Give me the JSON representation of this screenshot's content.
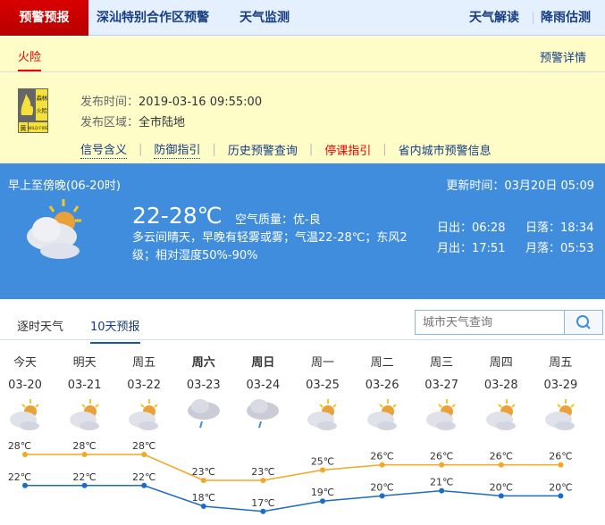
{
  "nav": {
    "active": "预警预报",
    "items": [
      "深汕特别合作区预警",
      "天气监测"
    ],
    "right": [
      "天气解读",
      "降雨估测"
    ]
  },
  "warning": {
    "tab": "火险",
    "details_link": "预警详情",
    "signal": {
      "top": "森林火险",
      "level": "黄",
      "en": "WILD FIRE"
    },
    "time_label": "发布时间：",
    "time": "2019-03-16 09:55:00",
    "area_label": "发布区域：",
    "area": "全市陆地",
    "links": [
      "信号含义",
      "防御指引",
      "历史预警查询",
      "停课指引",
      "省内城市预警信息"
    ]
  },
  "today": {
    "period": "早上至傍晚(06-20时)",
    "update": "更新时间：03月20日 05:09",
    "temp": "22-28℃",
    "aqi": "空气质量：优-良",
    "desc": "多云间晴天，早晚有轻雾或雾；气温22-28℃；东风2级；相对湿度50%-90%",
    "sunrise": "日出：06:28",
    "sunset": "日落：18:34",
    "moonrise": "月出：17:51",
    "moonset": "月落：05:53",
    "icon": "partly-cloudy-icon"
  },
  "tabs": [
    "逐时天气",
    "10天预报"
  ],
  "search": {
    "placeholder": "城市天气查询"
  },
  "colors": {
    "high": "#f5a623",
    "low": "#1a6cc8",
    "accent": "#3f8ddc"
  },
  "chart_data": {
    "type": "line",
    "categories": [
      "今天",
      "明天",
      "周五",
      "周六",
      "周日",
      "周一",
      "周二",
      "周三",
      "周四",
      "周五"
    ],
    "dates": [
      "03-20",
      "03-21",
      "03-22",
      "03-23",
      "03-24",
      "03-25",
      "03-26",
      "03-27",
      "03-28",
      "03-29"
    ],
    "icons": [
      "partly-cloudy",
      "partly-cloudy",
      "partly-cloudy",
      "rain",
      "rain",
      "partly-cloudy",
      "partly-cloudy",
      "partly-cloudy",
      "partly-cloudy",
      "partly-cloudy"
    ],
    "bold": [
      false,
      false,
      false,
      true,
      true,
      false,
      false,
      false,
      false,
      false
    ],
    "unit": "℃",
    "series": [
      {
        "values": [
          28,
          28,
          28,
          23,
          23,
          25,
          26,
          26,
          26,
          26
        ]
      },
      {
        "values": [
          22,
          22,
          22,
          18,
          17,
          19,
          20,
          21,
          20,
          20
        ]
      }
    ]
  }
}
